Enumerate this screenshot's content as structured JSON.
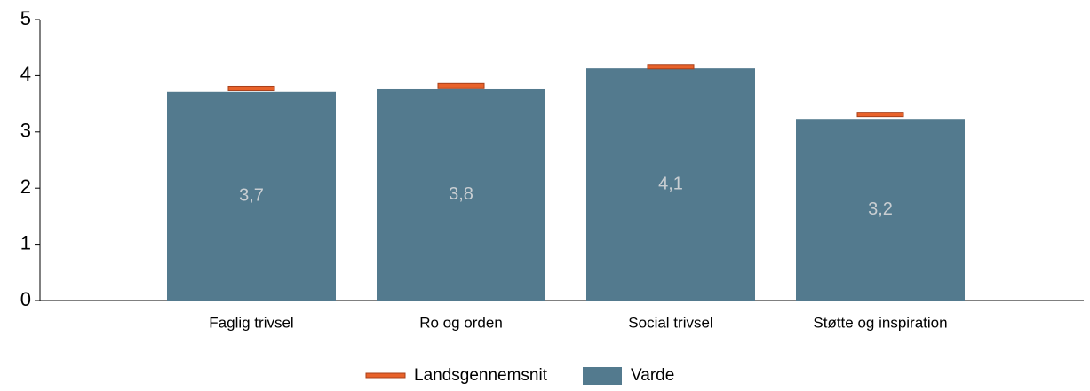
{
  "chart_data": {
    "type": "bar",
    "categories": [
      "Faglig trivsel",
      "Ro og orden",
      "Social trivsel",
      "Støtte og inspiration"
    ],
    "series": [
      {
        "name": "Landsgennemsnit",
        "type": "marker",
        "color": "#e8622a",
        "values": [
          3.77,
          3.82,
          4.16,
          3.31
        ]
      },
      {
        "name": "Varde",
        "type": "bar",
        "color": "#537a8e",
        "values": [
          3.71,
          3.77,
          4.13,
          3.23
        ],
        "value_labels": [
          "3,7",
          "3,8",
          "4,1",
          "3,2"
        ]
      }
    ],
    "ylim": [
      0,
      5
    ],
    "yticks": [
      0,
      1,
      2,
      3,
      4,
      5
    ],
    "legend": "bottom"
  }
}
